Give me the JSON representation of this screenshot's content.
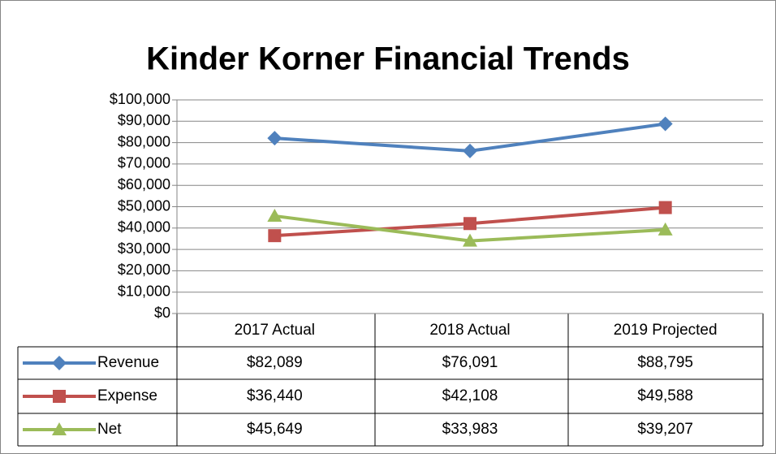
{
  "chart_data": {
    "type": "line",
    "title": "Kinder Korner Financial Trends",
    "categories": [
      "2017 Actual",
      "2018 Actual",
      "2019 Projected"
    ],
    "series": [
      {
        "name": "Revenue",
        "color": "#4f81bd",
        "marker": "diamond",
        "values": [
          82089,
          76091,
          88795
        ],
        "value_labels": [
          "$82,089",
          "$76,091",
          "$88,795"
        ]
      },
      {
        "name": "Expense",
        "color": "#c0504d",
        "marker": "square",
        "values": [
          36440,
          42108,
          49588
        ],
        "value_labels": [
          "$36,440",
          "$42,108",
          "$49,588"
        ]
      },
      {
        "name": "Net",
        "color": "#9bbb59",
        "marker": "triangle",
        "values": [
          45649,
          33983,
          39207
        ],
        "value_labels": [
          "$45,649",
          "$33,983",
          "$39,207"
        ]
      }
    ],
    "ylim": [
      0,
      100000
    ],
    "yticks": [
      {
        "value": 0,
        "label": "$0"
      },
      {
        "value": 10000,
        "label": "$10,000"
      },
      {
        "value": 20000,
        "label": "$20,000"
      },
      {
        "value": 30000,
        "label": "$30,000"
      },
      {
        "value": 40000,
        "label": "$40,000"
      },
      {
        "value": 50000,
        "label": "$50,000"
      },
      {
        "value": 60000,
        "label": "$60,000"
      },
      {
        "value": 70000,
        "label": "$70,000"
      },
      {
        "value": 80000,
        "label": "$80,000"
      },
      {
        "value": 90000,
        "label": "$90,000"
      },
      {
        "value": 100000,
        "label": "$100,000"
      }
    ],
    "grid": true
  }
}
